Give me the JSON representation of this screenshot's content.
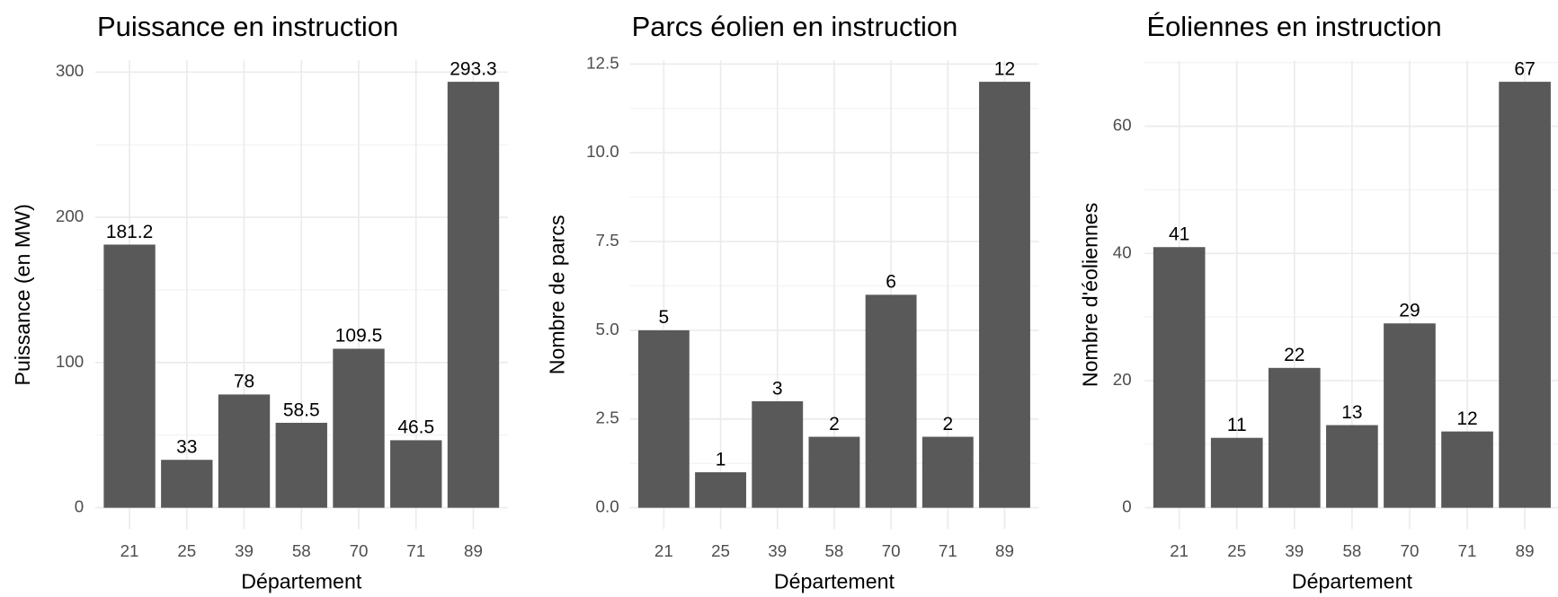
{
  "chart_data": [
    {
      "type": "bar",
      "title": "Puissance en instruction",
      "x_label": "Département",
      "y_label": "Puissance (en MW)",
      "categories": [
        "21",
        "25",
        "39",
        "58",
        "70",
        "71",
        "89"
      ],
      "values": [
        181.2,
        33,
        78,
        58.5,
        109.5,
        46.5,
        293.3
      ],
      "color": "#595959",
      "ylim": [
        -14.665,
        307.965
      ],
      "yticks": [
        0,
        100,
        200,
        300
      ],
      "minor_yticks": [
        50,
        150,
        250
      ],
      "grid": true
    },
    {
      "type": "bar",
      "title": "Parcs éolien en instruction",
      "x_label": "Département",
      "y_label": "Nombre de parcs",
      "categories": [
        "21",
        "25",
        "39",
        "58",
        "70",
        "71",
        "89"
      ],
      "values": [
        5,
        1,
        3,
        2,
        6,
        2,
        12
      ],
      "color": "#595959",
      "ylim": [
        -0.6,
        12.6
      ],
      "yticks": [
        {
          "value": 0,
          "label": "0.0"
        },
        2.5,
        {
          "value": 5,
          "label": "5.0"
        },
        7.5,
        {
          "value": 10,
          "label": "10.0"
        },
        12.5
      ],
      "minor_yticks": [
        1.25,
        3.75,
        6.25,
        8.75,
        11.25
      ],
      "grid": true
    },
    {
      "type": "bar",
      "title": "Éoliennes en instruction",
      "x_label": "Département",
      "y_label": "Nombre d'éoliennes",
      "categories": [
        "21",
        "25",
        "39",
        "58",
        "70",
        "71",
        "89"
      ],
      "values": [
        41,
        11,
        22,
        13,
        29,
        12,
        67
      ],
      "color": "#595959",
      "ylim": [
        -3.35,
        70.35
      ],
      "yticks": [
        0,
        20,
        40,
        60
      ],
      "minor_yticks": [
        10,
        30,
        50,
        70
      ],
      "grid": true
    }
  ]
}
